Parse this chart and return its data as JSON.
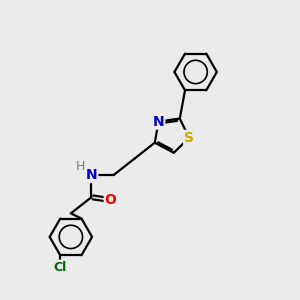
{
  "bg_color": "#ebebeb",
  "bond_color": "#000000",
  "bond_width": 1.6,
  "atom_labels": {
    "N": {
      "color": "#0000cc",
      "fontsize": 10,
      "fontweight": "bold"
    },
    "O": {
      "color": "#ff0000",
      "fontsize": 10,
      "fontweight": "bold"
    },
    "S": {
      "color": "#ccaa00",
      "fontsize": 10,
      "fontweight": "bold"
    },
    "Cl": {
      "color": "#006600",
      "fontsize": 9,
      "fontweight": "bold"
    },
    "H": {
      "color": "#558888",
      "fontsize": 9,
      "fontweight": "normal"
    }
  }
}
